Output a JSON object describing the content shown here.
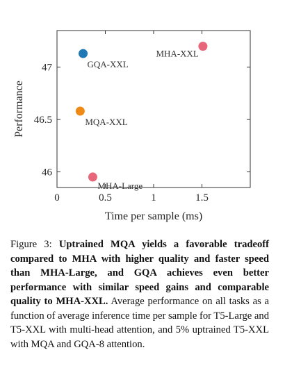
{
  "chart_data": {
    "type": "scatter",
    "xlabel": "Time per sample (ms)",
    "ylabel": "Performance",
    "xlim": [
      0,
      2
    ],
    "ylim": [
      45.85,
      47.35
    ],
    "x_ticks": [
      {
        "value": 0,
        "label": "0"
      },
      {
        "value": 0.5,
        "label": "0.5"
      },
      {
        "value": 1,
        "label": "1"
      },
      {
        "value": 1.5,
        "label": "1.5"
      }
    ],
    "y_ticks": [
      {
        "value": 46,
        "label": "46"
      },
      {
        "value": 46.5,
        "label": "46.5"
      },
      {
        "value": 47,
        "label": "47"
      }
    ],
    "grid": false,
    "points": [
      {
        "label": "GQA-XXL",
        "x": 0.27,
        "y": 47.13,
        "color": "#1f77b4"
      },
      {
        "label": "MHA-XXL",
        "x": 1.51,
        "y": 47.2,
        "color": "#e8667a"
      },
      {
        "label": "MQA-XXL",
        "x": 0.24,
        "y": 46.58,
        "color": "#f08a17"
      },
      {
        "label": "MHA-Large",
        "x": 0.37,
        "y": 45.95,
        "color": "#e8667a"
      }
    ]
  },
  "caption": {
    "prefix": "Figure 3: ",
    "bold": "Uptrained MQA yields a favorable tradeoff compared to MHA with higher quality and faster speed than MHA-Large, and GQA achieves even better performance with similar speed gains and comparable quality to MHA-XXL.",
    "rest": " Average performance on all tasks as a function of average inference time per sample for T5-Large and T5-XXL with multi-head attention, and 5% uptrained T5-XXL with MQA and GQA-8 attention."
  }
}
